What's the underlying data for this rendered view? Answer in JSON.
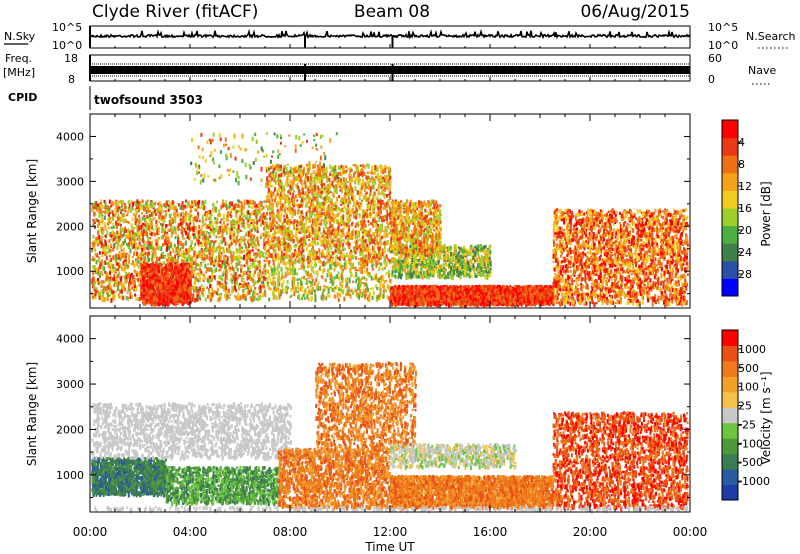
{
  "header": {
    "title": "Clyde River (fitACF)",
    "beam": "Beam 08",
    "date": "06/Aug/2015"
  },
  "noise_panel": {
    "left_label": "N.Sky",
    "right_label": "N.Search",
    "left_ticks": [
      "10^5",
      "10^0"
    ],
    "right_ticks": [
      "10^5",
      "10^0"
    ]
  },
  "freq_panel": {
    "left_label_top": "Freq.",
    "left_label_unit": "[MHz]",
    "right_label": "Nave",
    "left_ticks": [
      "18",
      "8"
    ],
    "right_ticks": [
      "60",
      "0"
    ]
  },
  "cpid_panel": {
    "label": "CPID",
    "value": "twofsound 3503"
  },
  "x_axis": {
    "label": "Time UT",
    "ticks": [
      "00:00",
      "04:00",
      "08:00",
      "12:00",
      "16:00",
      "20:00",
      "00:00"
    ]
  },
  "chart_data": [
    {
      "type": "heatmap",
      "variable": "Power",
      "ylabel": "Slant Range [km]",
      "xlabel": "Time UT",
      "xlim": [
        0,
        24
      ],
      "ylim": [
        180,
        4500
      ],
      "yticks": [
        "1000",
        "2000",
        "3000",
        "4000"
      ],
      "colorbar": {
        "label": "Power [dB]",
        "ticks": [
          "4",
          "8",
          "12",
          "16",
          "20",
          "24",
          "28"
        ],
        "colors": [
          "#0000ff",
          "#2a4fa8",
          "#3f7f4a",
          "#4caf3f",
          "#9ccf2b",
          "#f0cc1e",
          "#f5a21a",
          "#f07017",
          "#e83a14",
          "#ff0000"
        ]
      }
    },
    {
      "type": "heatmap",
      "variable": "Velocity",
      "ylabel": "Slant Range [km]",
      "xlabel": "Time UT",
      "xlim": [
        0,
        24
      ],
      "ylim": [
        180,
        4500
      ],
      "yticks": [
        "1000",
        "2000",
        "3000",
        "4000"
      ],
      "colorbar": {
        "label": "Velocity [m s⁻¹]",
        "ticks": [
          "1000",
          "500",
          "100",
          "25",
          "-25",
          "-100",
          "-500",
          "-1000"
        ],
        "colors": [
          "#1e3ca8",
          "#2a5aa0",
          "#3d7c52",
          "#4e9a3a",
          "#6cc640",
          "#c8c8c8",
          "#f4c24a",
          "#f2a02a",
          "#ee7a1c",
          "#e85016",
          "#ff0000"
        ]
      }
    }
  ]
}
